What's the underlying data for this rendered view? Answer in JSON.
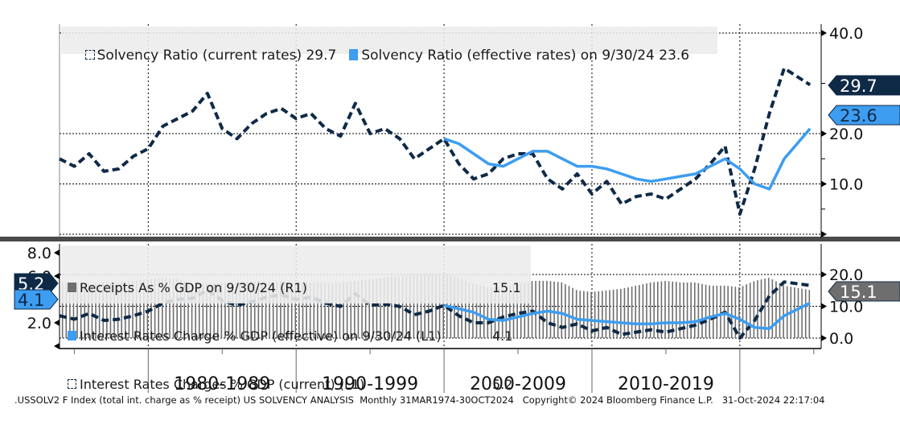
{
  "chart_data": [
    {
      "type": "line",
      "panel": "top",
      "title": "",
      "legend": {
        "placement": "top-left",
        "entries": [
          {
            "label": "Solvency Ratio (current rates) 29.7",
            "style": "dashed",
            "color": "#0f2a47"
          },
          {
            "label": "Solvency Ratio (effective rates) on 9/30/24 23.6",
            "style": "solid",
            "color": "#3d9df0"
          }
        ]
      },
      "y_axis": {
        "side": "right",
        "ylim": [
          0,
          40
        ],
        "ticks": [
          0,
          10,
          20,
          40
        ],
        "tick_labels": [
          "10.0",
          "20.0",
          "40.0"
        ]
      },
      "last_value_badges": [
        {
          "value": "29.7",
          "color": "#0f2a47",
          "text_color": "#ffffff"
        },
        {
          "value": "23.6",
          "color": "#3d9df0",
          "text_color": "#0f2a47"
        }
      ],
      "x": [
        1974,
        1975,
        1976,
        1977,
        1978,
        1979,
        1980,
        1981,
        1982,
        1983,
        1984,
        1985,
        1986,
        1987,
        1988,
        1989,
        1990,
        1991,
        1992,
        1993,
        1994,
        1995,
        1996,
        1997,
        1998,
        1999,
        2000,
        2001,
        2002,
        2003,
        2004,
        2005,
        2006,
        2007,
        2008,
        2009,
        2010,
        2011,
        2012,
        2013,
        2014,
        2015,
        2016,
        2017,
        2018,
        2019,
        2020,
        2021,
        2022,
        2023,
        2024.75
      ],
      "series": [
        {
          "name": "Solvency Ratio (current rates)",
          "style": "dashed",
          "color": "#0f2a47",
          "values": [
            15,
            13.5,
            16,
            12.5,
            13,
            15.5,
            17,
            21.5,
            23,
            24.5,
            28,
            21,
            19,
            22,
            24,
            25,
            23,
            24,
            21,
            19.5,
            26,
            20,
            21,
            19,
            15,
            17,
            19,
            14,
            11,
            12,
            15,
            16,
            16,
            11,
            9,
            12,
            8,
            10.5,
            6,
            7.5,
            8,
            7,
            9,
            11,
            14,
            17.5,
            4,
            13,
            24,
            33,
            29.7
          ]
        },
        {
          "name": "Solvency Ratio (effective rates)",
          "style": "solid",
          "color": "#3d9df0",
          "start_year": 2000,
          "values": [
            19,
            18,
            16,
            14,
            13.5,
            15,
            16.5,
            16.5,
            15,
            13.5,
            13.5,
            13,
            12,
            11,
            10.5,
            11,
            11.5,
            12,
            13.5,
            15,
            13,
            10,
            9,
            15,
            21,
            23.6
          ]
        }
      ]
    },
    {
      "type": "bar+line",
      "panel": "bottom",
      "legend": {
        "placement": "top-left",
        "entries": [
          {
            "label": "Receipts As % GDP on 9/30/24 (R1)",
            "value": "15.1",
            "style": "bar",
            "color": "#6e6e6e"
          },
          {
            "label": "Interest Rates Charge % GDP (effective) on 9/30/24 (L1)",
            "value": "4.1",
            "style": "solid",
            "color": "#3d9df0"
          },
          {
            "label": "Interest Rates Charges % GDP (current) (L1)",
            "value": "5.2",
            "style": "dashed",
            "color": "#0f2a47"
          }
        ]
      },
      "left_axis": {
        "ylim": [
          0,
          8
        ],
        "tick_labels": [
          "2.0",
          "6.0",
          "8.0"
        ]
      },
      "right_axis": {
        "ylim": [
          0,
          24
        ],
        "tick_labels": [
          "0.0",
          "10.0",
          "20.0"
        ]
      },
      "last_value_badges": [
        {
          "value": "5.2",
          "color": "#0f2a47",
          "text_color": "#ffffff",
          "side": "left"
        },
        {
          "value": "4.1",
          "color": "#3d9df0",
          "text_color": "#0f2a47",
          "side": "left"
        },
        {
          "value": "15.1",
          "color": "#6e6e6e",
          "text_color": "#ffffff",
          "side": "right"
        }
      ],
      "x": [
        1974,
        1975,
        1976,
        1977,
        1978,
        1979,
        1980,
        1981,
        1982,
        1983,
        1984,
        1985,
        1986,
        1987,
        1988,
        1989,
        1990,
        1991,
        1992,
        1993,
        1994,
        1995,
        1996,
        1997,
        1998,
        1999,
        2000,
        2001,
        2002,
        2003,
        2004,
        2005,
        2006,
        2007,
        2008,
        2009,
        2010,
        2011,
        2012,
        2013,
        2014,
        2015,
        2016,
        2017,
        2018,
        2019,
        2020,
        2021,
        2022,
        2023,
        2024.75
      ],
      "series": [
        {
          "name": "Receipts As % GDP",
          "axis": "right",
          "style": "bar",
          "color": "#6e6e6e",
          "values": [
            17.5,
            17.5,
            17,
            17.5,
            17.5,
            18,
            18.5,
            19,
            18.5,
            17,
            17,
            17.5,
            17.5,
            18,
            17.5,
            18,
            17.5,
            17.5,
            17.5,
            17.5,
            18,
            18.5,
            19,
            19.5,
            20,
            20,
            20.5,
            19,
            17,
            16,
            16,
            17,
            18,
            18,
            17.5,
            15,
            14.5,
            15,
            15.5,
            16.5,
            17.5,
            18,
            17.5,
            17.5,
            16.5,
            16.5,
            16,
            18,
            19,
            16.5,
            15.1
          ]
        },
        {
          "name": "Interest Rates Charges % GDP (current)",
          "axis": "left",
          "style": "dashed",
          "color": "#0f2a47",
          "values": [
            2.6,
            2.3,
            2.8,
            2.2,
            2.3,
            2.6,
            3,
            3.7,
            4,
            4.1,
            4.8,
            3.9,
            3.5,
            3.8,
            4.2,
            4.4,
            4,
            4.2,
            3.7,
            3.4,
            4.5,
            3.5,
            3.6,
            3.4,
            2.7,
            3,
            3.5,
            2.6,
            2,
            2,
            2.5,
            2.8,
            3,
            2,
            1.6,
            1.9,
            1.3,
            1.6,
            1,
            1.2,
            1.4,
            1.2,
            1.5,
            1.8,
            2.3,
            2.9,
            0.7,
            2.2,
            4.3,
            5.5,
            5.2
          ]
        },
        {
          "name": "Interest Rates Charge % GDP (effective)",
          "axis": "left",
          "style": "solid",
          "color": "#3d9df0",
          "start_year": 2000,
          "values": [
            3.5,
            3.2,
            2.9,
            2.3,
            2.2,
            2.5,
            2.8,
            3,
            2.8,
            2.3,
            2.2,
            2.1,
            2,
            1.9,
            1.9,
            2,
            2,
            2.1,
            2.5,
            2.8,
            2.3,
            1.6,
            1.5,
            2.6,
            3.7,
            4.1
          ]
        }
      ],
      "x_axis": {
        "tick_labels": [
          "1980-1989",
          "1990-1999",
          "2000-2009",
          "2010-2019"
        ],
        "xlim": [
          1974,
          2025.5
        ]
      }
    }
  ],
  "footer": {
    "text": ".USSOLV2 F Index (total int. charge as % receipt) US SOLVENCY ANALYSIS  Monthly 31MAR1974-30OCT2024   Copyright© 2024 Bloomberg Finance L.P.   31-Oct-2024 22:17:04"
  }
}
